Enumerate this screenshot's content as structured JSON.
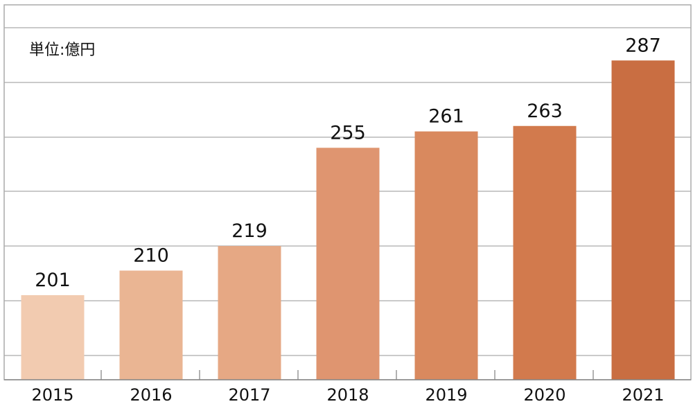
{
  "chart_data": {
    "type": "bar",
    "unit_label": "単位:億円",
    "categories": [
      "2015",
      "2016",
      "2017",
      "2018",
      "2019",
      "2020",
      "2021"
    ],
    "values": [
      201,
      210,
      219,
      255,
      261,
      263,
      287
    ],
    "data_labels": [
      "201",
      "210",
      "219",
      "255",
      "261",
      "263",
      "287"
    ],
    "ylim": [
      170,
      299
    ],
    "grid": true,
    "colors": {
      "bars": [
        "#f2cbb0",
        "#eab593",
        "#e6a884",
        "#df9570",
        "#d9895e",
        "#d27a4d",
        "#c96e42"
      ],
      "grid": "#aaaaaa",
      "frame": "#aaaaaa",
      "text": "#111111"
    }
  }
}
